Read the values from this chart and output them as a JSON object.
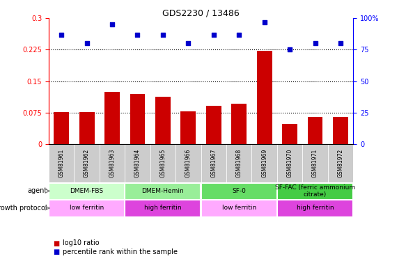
{
  "title": "GDS2230 / 13486",
  "samples": [
    "GSM81961",
    "GSM81962",
    "GSM81963",
    "GSM81964",
    "GSM81965",
    "GSM81966",
    "GSM81967",
    "GSM81968",
    "GSM81969",
    "GSM81970",
    "GSM81971",
    "GSM81972"
  ],
  "log10_ratio": [
    0.076,
    0.076,
    0.125,
    0.12,
    0.113,
    0.079,
    0.092,
    0.097,
    0.222,
    0.048,
    0.065,
    0.065
  ],
  "percentile_rank": [
    87,
    80,
    95,
    87,
    87,
    80,
    87,
    87,
    97,
    75,
    80,
    80
  ],
  "bar_color": "#cc0000",
  "scatter_color": "#0000cc",
  "ylim_left": [
    0,
    0.3
  ],
  "ylim_right": [
    0,
    100
  ],
  "yticks_left": [
    0,
    0.075,
    0.15,
    0.225,
    0.3
  ],
  "yticks_right": [
    0,
    25,
    50,
    75,
    100
  ],
  "hlines": [
    0.075,
    0.15,
    0.225
  ],
  "agent_groups": [
    {
      "label": "DMEM-FBS",
      "start": 0,
      "end": 3,
      "color": "#ccffcc"
    },
    {
      "label": "DMEM-Hemin",
      "start": 3,
      "end": 6,
      "color": "#99ee99"
    },
    {
      "label": "SF-0",
      "start": 6,
      "end": 9,
      "color": "#66dd66"
    },
    {
      "label": "SF-FAC (ferric ammonium\ncitrate)",
      "start": 9,
      "end": 12,
      "color": "#44cc44"
    }
  ],
  "growth_groups": [
    {
      "label": "low ferritin",
      "start": 0,
      "end": 3,
      "color": "#ffaaff"
    },
    {
      "label": "high ferritin",
      "start": 3,
      "end": 6,
      "color": "#dd44dd"
    },
    {
      "label": "low ferritin",
      "start": 6,
      "end": 9,
      "color": "#ffaaff"
    },
    {
      "label": "high ferritin",
      "start": 9,
      "end": 12,
      "color": "#dd44dd"
    }
  ],
  "legend_items": [
    {
      "label": "log10 ratio",
      "color": "#cc0000"
    },
    {
      "label": "percentile rank within the sample",
      "color": "#0000cc"
    }
  ],
  "agent_label": "agent",
  "growth_label": "growth protocol",
  "sample_box_color": "#cccccc",
  "xlim": [
    -0.5,
    11.5
  ]
}
